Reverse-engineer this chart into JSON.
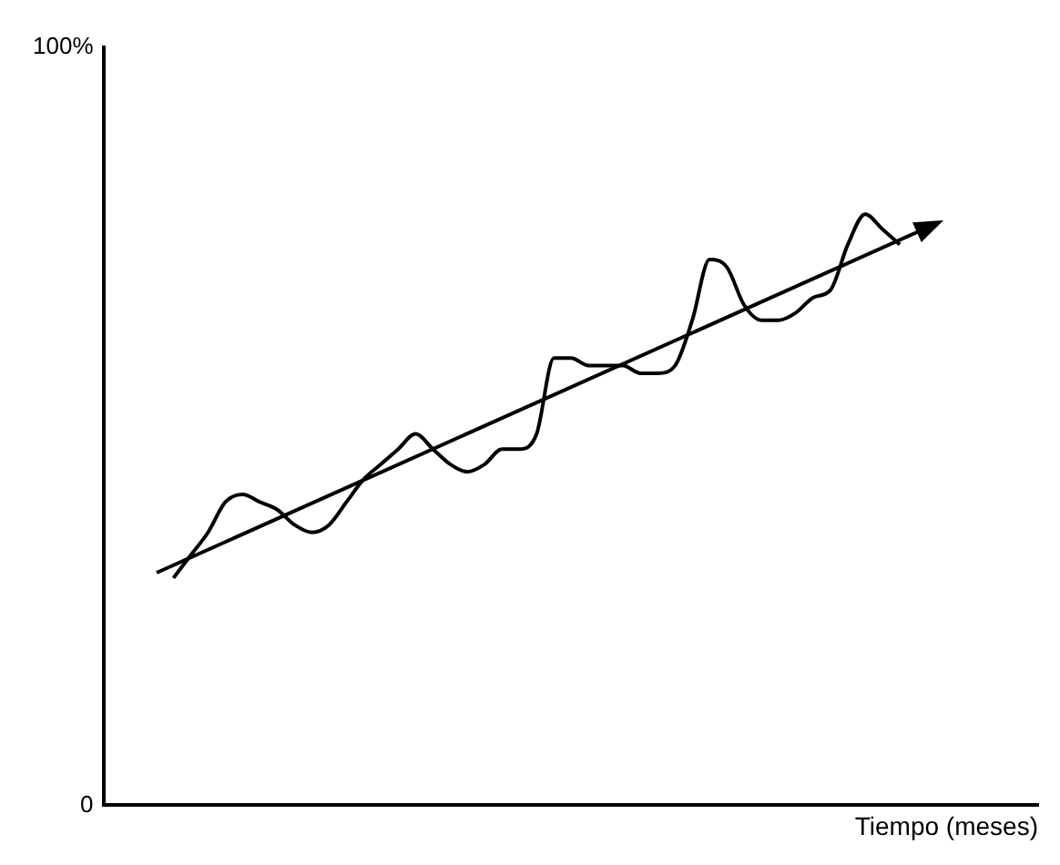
{
  "chart_data": {
    "type": "line",
    "xlabel": "Tiempo (meses)",
    "categories": [
      null,
      null,
      null,
      null,
      null,
      null,
      null,
      null,
      null,
      null,
      null,
      null,
      null,
      null,
      null,
      null,
      null,
      null,
      null,
      null,
      null,
      null,
      null,
      null,
      null,
      null,
      null,
      null,
      null,
      null,
      null,
      null,
      null,
      null,
      null,
      null,
      null,
      null,
      null,
      null,
      null,
      null,
      null,
      null,
      null,
      null,
      null,
      null,
      null,
      null,
      null,
      null,
      null,
      null,
      null
    ],
    "series": [
      {
        "color": "#000000",
        "values": [
          null,
          null,
          null,
          null,
          30,
          33,
          36,
          40,
          41,
          40,
          39,
          37,
          36,
          37,
          40,
          43,
          45,
          47,
          49,
          47,
          45,
          44,
          45,
          47,
          47,
          49,
          59,
          59,
          58,
          58,
          58,
          57,
          57,
          58,
          64,
          72,
          71,
          66,
          64,
          64,
          65,
          67,
          68,
          74,
          78,
          76,
          74,
          null,
          null,
          null,
          null,
          null,
          null,
          null,
          null
        ]
      }
    ],
    "ylim": [
      0,
      100
    ],
    "yticks": [
      0,
      {
        "value": 100,
        "label": "100%"
      }
    ],
    "tick_labels": "y",
    "grid": false,
    "legend": false,
    "marker": "none",
    "line_style": "solid"
  }
}
